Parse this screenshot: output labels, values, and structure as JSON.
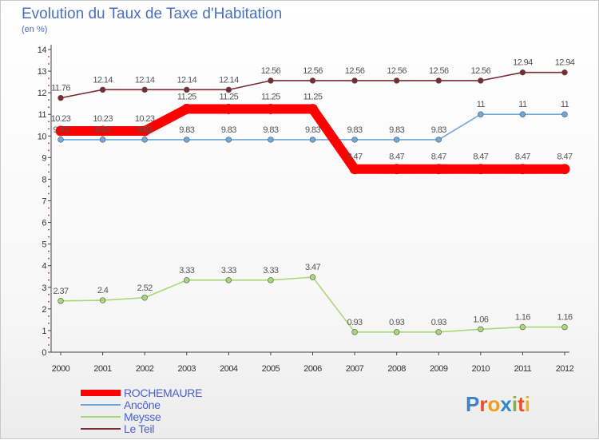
{
  "title": "Evolution du Taux de Taxe d'Habitation",
  "subtitle": "(en %)",
  "brand": {
    "text": "Proxiti",
    "letters": [
      {
        "ch": "P",
        "color": "#3b82c8"
      },
      {
        "ch": "r",
        "color": "#e8502a"
      },
      {
        "ch": "o",
        "color": "#f29c1f"
      },
      {
        "ch": "x",
        "color": "#2f8ac9"
      },
      {
        "ch": "i",
        "color": "#7cb342"
      },
      {
        "ch": "t",
        "color": "#e8502a"
      },
      {
        "ch": "i",
        "color": "#f2b01f"
      }
    ]
  },
  "chart_data": {
    "type": "line",
    "title": "Evolution du Taux de Taxe d'Habitation",
    "ylabel": "(en %)",
    "xlabel": "",
    "ylim": [
      0,
      14
    ],
    "yticks": [
      0,
      1,
      2,
      3,
      4,
      5,
      6,
      7,
      8,
      9,
      10,
      11,
      12,
      13,
      14
    ],
    "categories": [
      "2000",
      "2001",
      "2002",
      "2003",
      "2004",
      "2005",
      "2006",
      "2007",
      "2008",
      "2009",
      "2010",
      "2011",
      "2012"
    ],
    "series": [
      {
        "name": "ROCHEMAURE",
        "color": "#ff0000",
        "values": [
          10.23,
          10.23,
          10.23,
          11.25,
          11.25,
          11.25,
          11.25,
          8.47,
          8.47,
          8.47,
          8.47,
          8.47,
          8.47
        ],
        "labels": [
          "10.23",
          "10.23",
          "10.23",
          "11.25",
          "11.25",
          "11.25",
          "11.25",
          "8.47",
          "8.47",
          "8.47",
          "8.47",
          "8.47",
          "8.47"
        ]
      },
      {
        "name": "Ancône",
        "color": "#6fa8dc",
        "values": [
          9.83,
          9.83,
          9.83,
          9.83,
          9.83,
          9.83,
          9.83,
          9.83,
          9.83,
          9.83,
          11,
          11,
          11
        ],
        "labels": [
          "9.83",
          "9.83",
          "9.83",
          "9.83",
          "9.83",
          "9.83",
          "9.83",
          "9.83",
          "9.83",
          "9.83",
          "11",
          "11",
          "11"
        ]
      },
      {
        "name": "Meysse",
        "color": "#a8d878",
        "values": [
          2.37,
          2.4,
          2.52,
          3.33,
          3.33,
          3.33,
          3.47,
          0.93,
          0.93,
          0.93,
          1.06,
          1.16,
          1.16
        ],
        "labels": [
          "2.37",
          "2.4",
          "2.52",
          "3.33",
          "3.33",
          "3.33",
          "3.47",
          "0.93",
          "0.93",
          "0.93",
          "1.06",
          "1.16",
          "1.16"
        ]
      },
      {
        "name": "Le Teil",
        "color": "#7a2a30",
        "values": [
          11.76,
          12.14,
          12.14,
          12.14,
          12.14,
          12.56,
          12.56,
          12.56,
          12.56,
          12.56,
          12.56,
          12.94,
          12.94
        ],
        "labels": [
          "11.76",
          "12.14",
          "12.14",
          "12.14",
          "12.14",
          "12.56",
          "12.56",
          "12.56",
          "12.56",
          "12.56",
          "12.56",
          "12.94",
          "12.94"
        ]
      }
    ],
    "legend": [
      {
        "label": "ROCHEMAURE",
        "color": "#ff0000"
      },
      {
        "label": "Ancône",
        "color": "#6fa8dc"
      },
      {
        "label": "Meysse",
        "color": "#a8d878"
      },
      {
        "label": "Le Teil",
        "color": "#7a2a30"
      }
    ],
    "legend_position": "bottom-left",
    "grid": false
  }
}
